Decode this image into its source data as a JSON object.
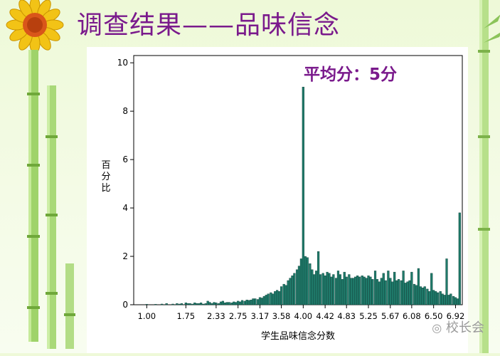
{
  "slide": {
    "title": "调查结果——品味信念",
    "watermark": "校长会"
  },
  "colors": {
    "title": "#7a1a8c",
    "bar_fill": "#1f7a6a",
    "bar_stroke": "#0b3b33",
    "annotation": "#7a1a8c"
  },
  "decorations": [
    "sunflower-icon",
    "bamboo-stalks",
    "wechat-icon"
  ],
  "chart_data": {
    "type": "bar",
    "title": "",
    "annotation": "平均分：5分",
    "xlabel": "学生品味信念分数",
    "ylabel": "百分比",
    "ylim": [
      0,
      10.3
    ],
    "yticks": [
      0,
      2,
      4,
      6,
      8,
      10
    ],
    "xlim": [
      0.75,
      7.05
    ],
    "xtick_labels": [
      "1.00",
      "1.75",
      "2.33",
      "2.75",
      "3.17",
      "3.58",
      "4.00",
      "4.42",
      "4.83",
      "5.25",
      "5.67",
      "6.08",
      "6.50",
      "6.92"
    ],
    "xtick_values": [
      1.0,
      1.75,
      2.33,
      2.75,
      3.17,
      3.58,
      4.0,
      4.42,
      4.83,
      5.25,
      5.67,
      6.08,
      6.5,
      6.92
    ],
    "x": [
      1.0,
      1.04,
      1.08,
      1.13,
      1.17,
      1.21,
      1.25,
      1.29,
      1.33,
      1.38,
      1.42,
      1.46,
      1.5,
      1.54,
      1.58,
      1.63,
      1.67,
      1.71,
      1.75,
      1.79,
      1.83,
      1.88,
      1.92,
      1.96,
      2.0,
      2.04,
      2.08,
      2.13,
      2.17,
      2.21,
      2.25,
      2.29,
      2.33,
      2.38,
      2.42,
      2.46,
      2.5,
      2.54,
      2.58,
      2.63,
      2.67,
      2.71,
      2.75,
      2.79,
      2.83,
      2.88,
      2.92,
      2.96,
      3.0,
      3.04,
      3.08,
      3.13,
      3.17,
      3.21,
      3.25,
      3.29,
      3.33,
      3.38,
      3.42,
      3.46,
      3.5,
      3.54,
      3.58,
      3.63,
      3.67,
      3.71,
      3.75,
      3.79,
      3.83,
      3.88,
      3.92,
      3.96,
      4.0,
      4.04,
      4.08,
      4.13,
      4.17,
      4.21,
      4.25,
      4.29,
      4.33,
      4.38,
      4.42,
      4.46,
      4.5,
      4.54,
      4.58,
      4.63,
      4.67,
      4.71,
      4.75,
      4.79,
      4.83,
      4.88,
      4.92,
      4.96,
      5.0,
      5.04,
      5.08,
      5.13,
      5.17,
      5.21,
      5.25,
      5.29,
      5.33,
      5.38,
      5.42,
      5.46,
      5.5,
      5.54,
      5.58,
      5.63,
      5.67,
      5.71,
      5.75,
      5.79,
      5.83,
      5.88,
      5.92,
      5.96,
      6.0,
      6.04,
      6.08,
      6.13,
      6.17,
      6.21,
      6.25,
      6.29,
      6.33,
      6.38,
      6.42,
      6.46,
      6.5,
      6.54,
      6.58,
      6.63,
      6.67,
      6.71,
      6.75,
      6.79,
      6.83,
      6.88,
      6.92,
      6.96,
      7.0
    ],
    "values": [
      0.02,
      0,
      0,
      0,
      0.02,
      0,
      0,
      0.03,
      0,
      0.05,
      0,
      0,
      0.03,
      0,
      0.05,
      0.03,
      0.05,
      0,
      0.08,
      0.05,
      0.05,
      0.03,
      0.08,
      0.05,
      0.05,
      0.08,
      0.03,
      0.05,
      0.15,
      0.1,
      0.05,
      0.1,
      0.08,
      0.05,
      0.12,
      0.15,
      0.08,
      0.1,
      0.1,
      0.08,
      0.12,
      0.1,
      0.15,
      0.12,
      0.18,
      0.15,
      0.2,
      0.18,
      0.2,
      0.25,
      0.25,
      0.22,
      0.3,
      0.28,
      0.35,
      0.4,
      0.45,
      0.5,
      0.45,
      0.55,
      0.6,
      0.55,
      0.75,
      0.85,
      0.8,
      1.0,
      1.1,
      1.2,
      1.3,
      1.45,
      1.6,
      1.9,
      9.0,
      2.0,
      1.95,
      1.7,
      1.45,
      1.25,
      1.4,
      2.2,
      1.25,
      1.3,
      1.2,
      1.35,
      1.3,
      1.15,
      1.25,
      1.1,
      1.4,
      1.25,
      1.05,
      1.35,
      1.15,
      1.25,
      1.1,
      1.1,
      1.15,
      1.2,
      1.15,
      1.2,
      1.15,
      1.1,
      1.2,
      1.15,
      1.05,
      1.4,
      1.05,
      0.95,
      1.1,
      1.3,
      1.0,
      1.4,
      1.1,
      0.95,
      1.35,
      1.0,
      1.05,
      1.0,
      1.4,
      0.9,
      0.95,
      1.0,
      1.35,
      0.85,
      0.8,
      1.5,
      0.75,
      0.7,
      0.75,
      0.65,
      0.55,
      1.3,
      0.6,
      0.55,
      0.5,
      0.55,
      0.45,
      0.4,
      1.9,
      0.4,
      0.45,
      0.35,
      0.3,
      0.25,
      3.8
    ]
  }
}
